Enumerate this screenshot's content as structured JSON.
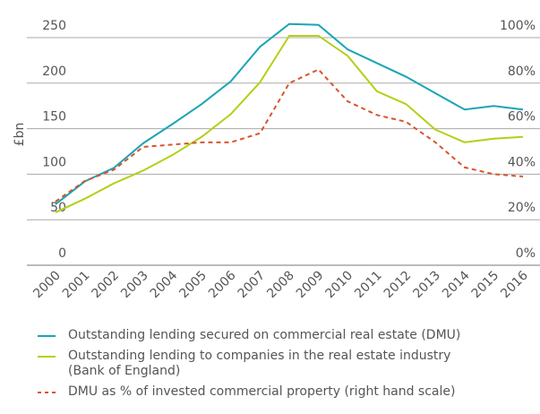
{
  "chart_data": {
    "type": "line",
    "ylabel": "£bn",
    "x": [
      "2000",
      "2001",
      "2002",
      "2003",
      "2004",
      "2005",
      "2006",
      "2007",
      "2008",
      "2009",
      "2010",
      "2011",
      "2012",
      "2013",
      "2014",
      "2015",
      "2016"
    ],
    "ylim": [
      0,
      250
    ],
    "yticks": [
      0,
      50,
      100,
      150,
      200,
      250
    ],
    "y2lim": [
      0,
      100
    ],
    "y2ticks": [
      {
        "value": 0,
        "label": "0%"
      },
      {
        "value": 20,
        "label": "20%"
      },
      {
        "value": 40,
        "label": "40%"
      },
      {
        "value": 60,
        "label": "60%"
      },
      {
        "value": 80,
        "label": "80%"
      },
      {
        "value": 100,
        "label": "100%"
      }
    ],
    "grid": true,
    "legend": "bottom",
    "series": [
      {
        "name": "Outstanding lending secured on commercial real estate (DMU)",
        "color": "#1aa5b5",
        "style": "solid",
        "values": [
          67,
          92,
          107,
          134,
          155,
          177,
          202,
          240,
          265,
          264,
          237,
          222,
          207,
          189,
          171,
          175,
          171
        ]
      },
      {
        "name": "Outstanding lending to companies in the real estate industry (Bank of England)",
        "color": "#b5cf16",
        "style": "solid",
        "values": [
          58,
          73,
          90,
          104,
          121,
          141,
          166,
          201,
          252,
          252,
          230,
          191,
          177,
          149,
          135,
          139,
          141
        ]
      },
      {
        "name": "DMU as % of invested commercial property (right hand scale)",
        "color": "#d9542b",
        "style": "dashed",
        "axis": "y2",
        "values": [
          28,
          37,
          42,
          52,
          53,
          54,
          54,
          58,
          80,
          86,
          72,
          66,
          63,
          54,
          43,
          40,
          39
        ]
      }
    ]
  }
}
